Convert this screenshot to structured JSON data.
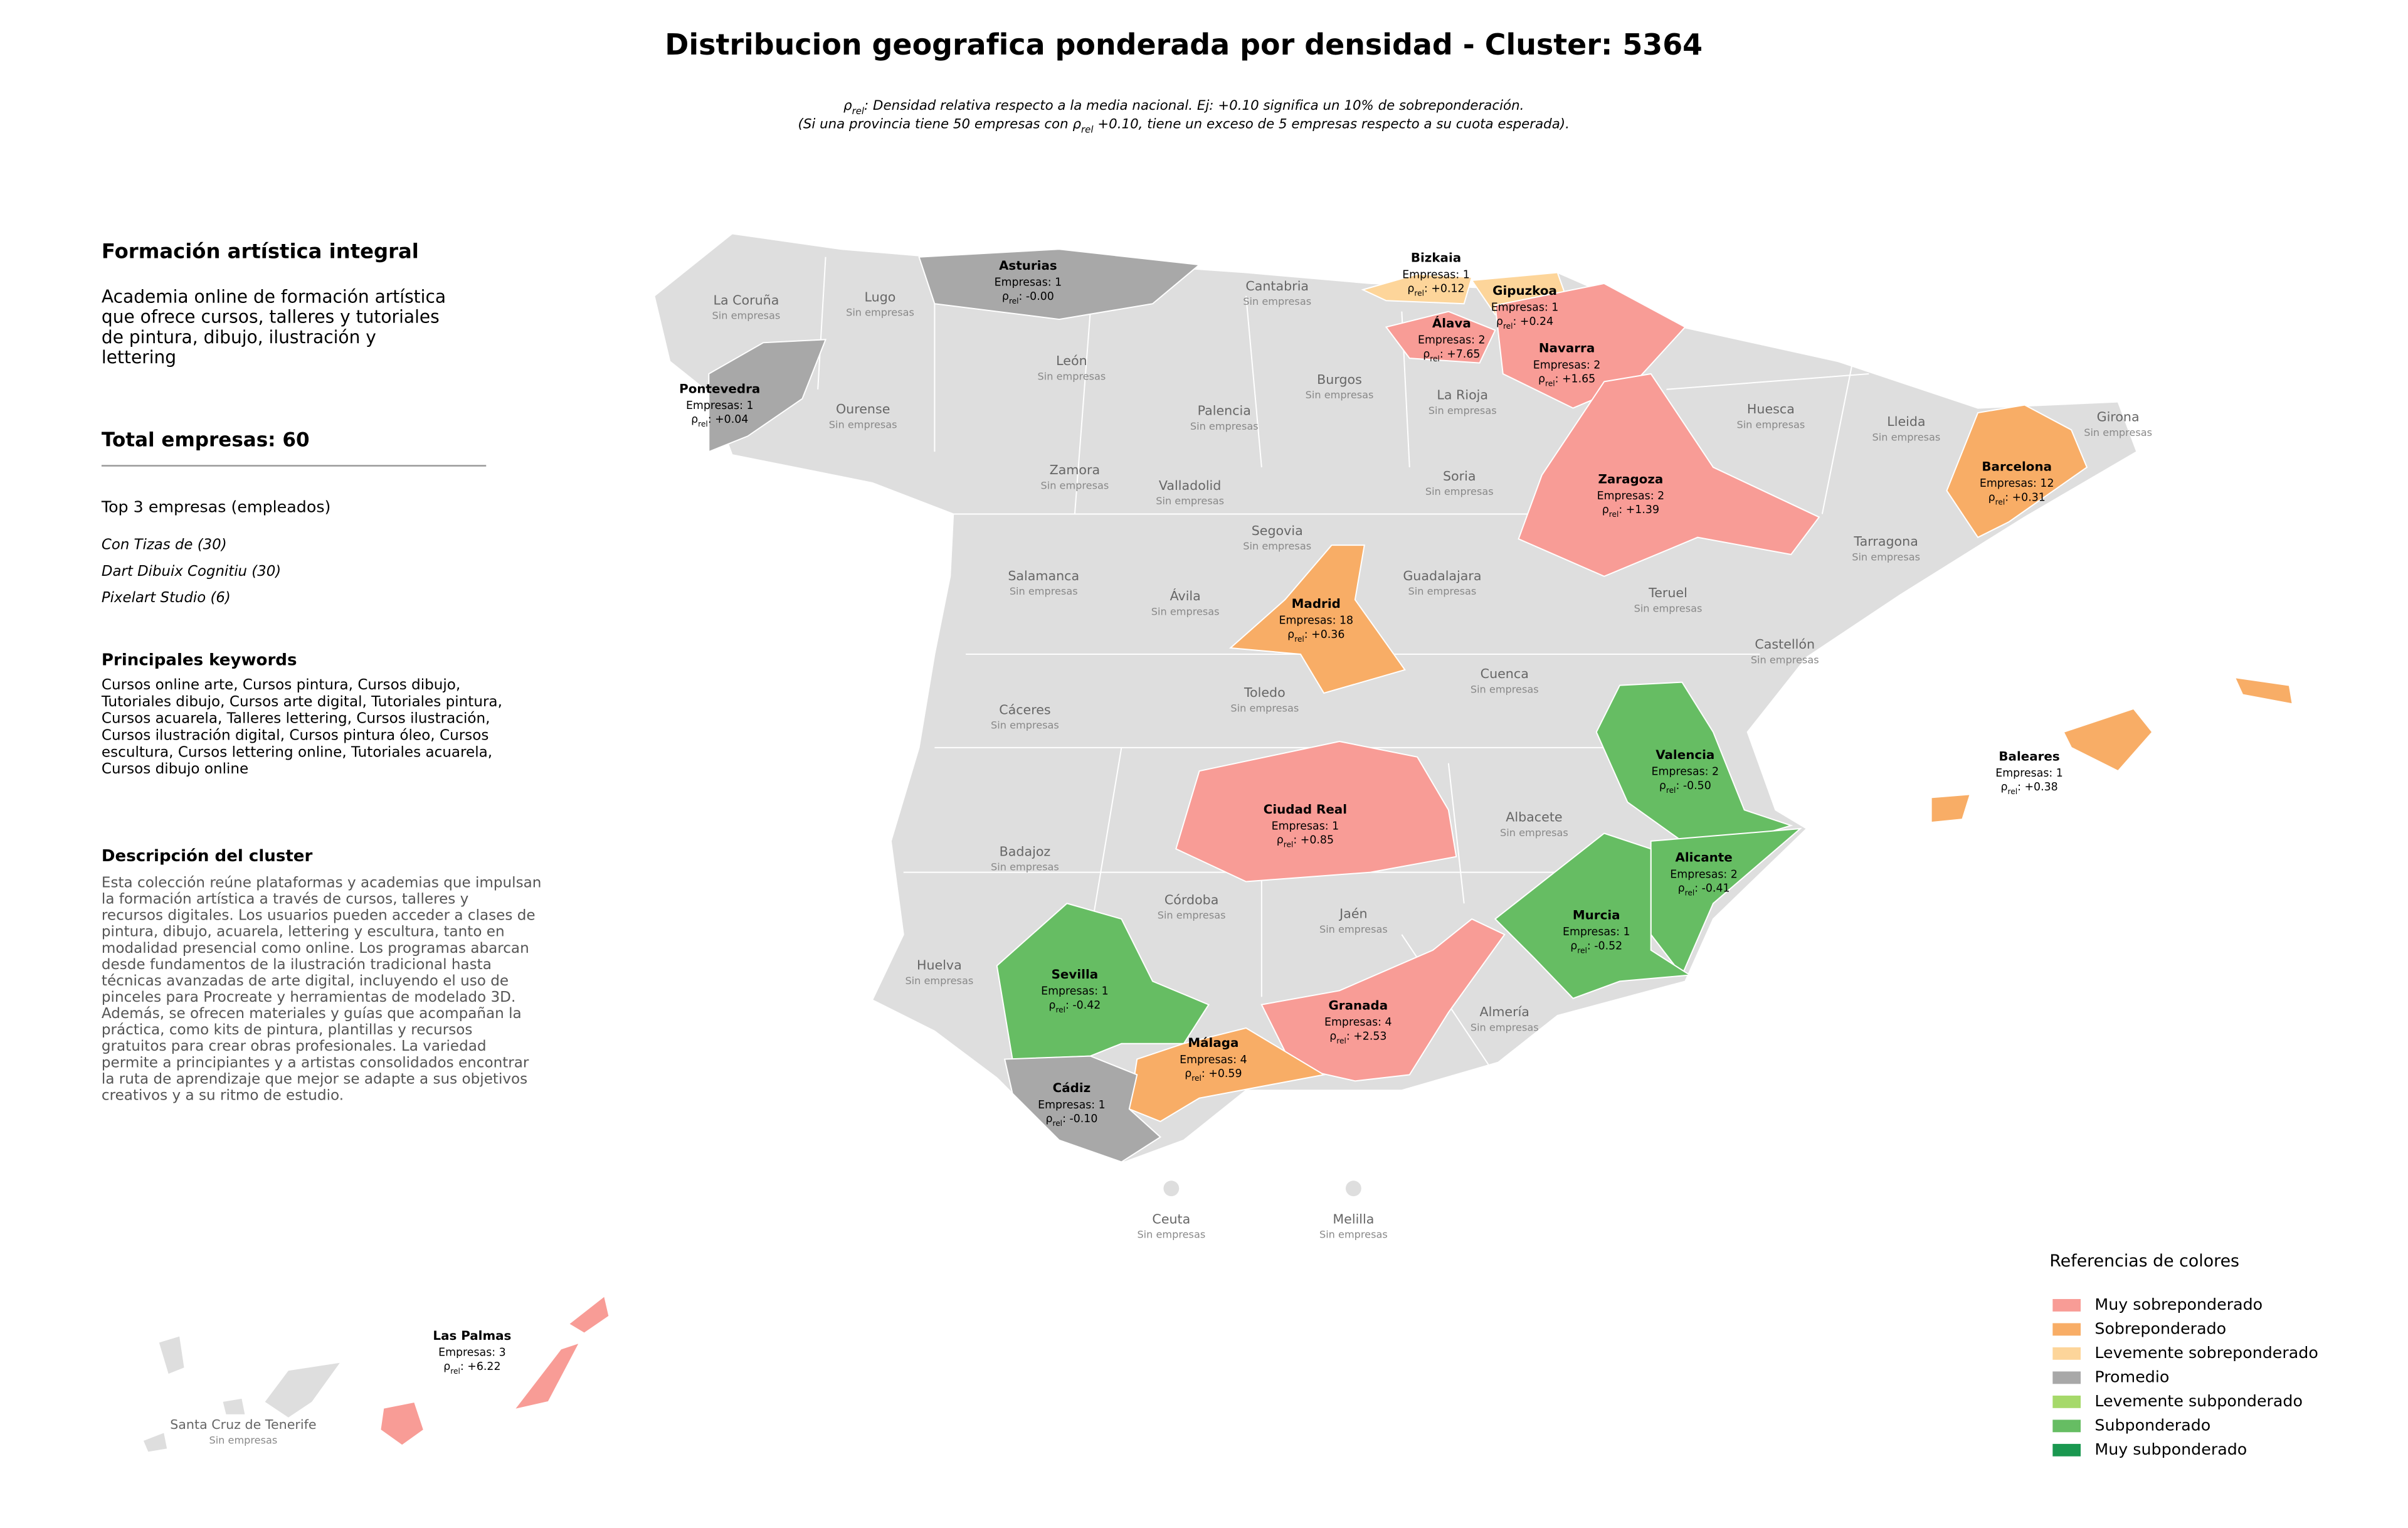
{
  "title": "Distribucion geografica ponderada por densidad - Cluster: 5364",
  "subtitle": [
    [
      "ρ",
      {
        "sub": "rel"
      },
      ": Densidad relativa respecto a la media nacional. Ej: +0.10 significa un 10% de sobreponderación."
    ],
    [
      "(Si una provincia tiene 50 empresas con ",
      "ρ",
      {
        "sub": "rel"
      },
      " +0.10, tiene un exceso de 5 empresas respecto a su cuota esperada)."
    ]
  ],
  "panel": {
    "heading": "Formación artística integral",
    "description": [
      "Academia online de formación artística",
      "que ofrece cursos, talleres y tutoriales",
      "de pintura, dibujo, ilustración y",
      "lettering"
    ],
    "total": "Total empresas: 60",
    "top_heading": "Top 3 empresas (empleados)",
    "top_companies": [
      "Con Tizas de (30)",
      "Dart Dibuix Cognitiu (30)",
      "Pixelart Studio (6)"
    ],
    "keywords_heading": "Principales keywords",
    "keywords": [
      "Cursos online arte, Cursos pintura, Cursos dibujo,",
      "Tutoriales dibujo, Cursos arte digital, Tutoriales pintura,",
      "Cursos acuarela, Talleres lettering, Cursos ilustración,",
      "Cursos ilustración digital, Cursos pintura óleo, Cursos",
      "escultura, Cursos lettering online, Tutoriales acuarela,",
      "Cursos dibujo online"
    ],
    "cluster_heading": "Descripción del cluster",
    "cluster_description": [
      "Esta colección reúne plataformas y academias que impulsan",
      "la formación artística a través de cursos, talleres y",
      "recursos digitales. Los usuarios pueden acceder a clases de",
      "pintura, dibujo, acuarela, lettering y escultura, tanto en",
      "modalidad presencial como online. Los programas abarcan",
      "desde fundamentos de la ilustración tradicional hasta",
      "técnicas avanzadas de arte digital, incluyendo el uso de",
      "pinceles para Procreate y herramientas de modelado 3D.",
      "Además, se ofrecen materiales y guías que acompañan la",
      "práctica, como kits de pintura, plantillas y recursos",
      "gratuitos para crear obras profesionales. La variedad",
      "permite a principiantes y a artistas consolidados encontrar",
      "la ruta de aprendizaje que mejor se adapte a sus objetivos",
      "creativos y a su ritmo de estudio."
    ]
  },
  "map": {
    "provinces": [
      {
        "name": "Asturias",
        "category": "Promedio",
        "companies": "Empresas: 1",
        "density": [
          "ρ",
          {
            "sub": "rel"
          },
          ": -0.00"
        ]
      },
      {
        "name": "Bizkaia",
        "category": "Levemente sobreponderado",
        "companies": "Empresas: 1",
        "density": [
          "ρ",
          {
            "sub": "rel"
          },
          ": +0.12"
        ]
      },
      {
        "name": "Gipuzkoa",
        "category": "Levemente sobreponderado",
        "companies": "Empresas: 1",
        "density": [
          "ρ",
          {
            "sub": "rel"
          },
          ": +0.24"
        ]
      },
      {
        "name": "Álava",
        "category": "Muy sobreponderado",
        "companies": "Empresas: 2",
        "density": [
          "ρ",
          {
            "sub": "rel"
          },
          ": +7.65"
        ]
      },
      {
        "name": "Navarra",
        "category": "Muy sobreponderado",
        "companies": "Empresas: 2",
        "density": [
          "ρ",
          {
            "sub": "rel"
          },
          ": +1.65"
        ]
      },
      {
        "name": "Pontevedra",
        "category": "Promedio",
        "companies": "Empresas: 1",
        "density": [
          "ρ",
          {
            "sub": "rel"
          },
          ": +0.04"
        ]
      },
      {
        "name": "Barcelona",
        "category": "Sobreponderado",
        "companies": "Empresas: 12",
        "density": [
          "ρ",
          {
            "sub": "rel"
          },
          ": +0.31"
        ]
      },
      {
        "name": "Zaragoza",
        "category": "Muy sobreponderado",
        "companies": "Empresas: 2",
        "density": [
          "ρ",
          {
            "sub": "rel"
          },
          ": +1.39"
        ]
      },
      {
        "name": "Madrid",
        "category": "Sobreponderado",
        "companies": "Empresas: 18",
        "density": [
          "ρ",
          {
            "sub": "rel"
          },
          ": +0.36"
        ]
      },
      {
        "name": "Ciudad Real",
        "category": "Muy sobreponderado",
        "companies": "Empresas: 1",
        "density": [
          "ρ",
          {
            "sub": "rel"
          },
          ": +0.85"
        ]
      },
      {
        "name": "Valencia",
        "category": "Subponderado",
        "companies": "Empresas: 2",
        "density": [
          "ρ",
          {
            "sub": "rel"
          },
          ": -0.50"
        ]
      },
      {
        "name": "Alicante",
        "category": "Subponderado",
        "companies": "Empresas: 2",
        "density": [
          "ρ",
          {
            "sub": "rel"
          },
          ": -0.41"
        ]
      },
      {
        "name": "Murcia",
        "category": "Subponderado",
        "companies": "Empresas: 1",
        "density": [
          "ρ",
          {
            "sub": "rel"
          },
          ": -0.52"
        ]
      },
      {
        "name": "Sevilla",
        "category": "Subponderado",
        "companies": "Empresas: 1",
        "density": [
          "ρ",
          {
            "sub": "rel"
          },
          ": -0.42"
        ]
      },
      {
        "name": "Granada",
        "category": "Muy sobreponderado",
        "companies": "Empresas: 4",
        "density": [
          "ρ",
          {
            "sub": "rel"
          },
          ": +2.53"
        ]
      },
      {
        "name": "Málaga",
        "category": "Sobreponderado",
        "companies": "Empresas: 4",
        "density": [
          "ρ",
          {
            "sub": "rel"
          },
          ": +0.59"
        ]
      },
      {
        "name": "Cádiz",
        "category": "Promedio",
        "companies": "Empresas: 1",
        "density": [
          "ρ",
          {
            "sub": "rel"
          },
          ": -0.10"
        ]
      },
      {
        "name": "Baleares",
        "category": "Sobreponderado",
        "companies": "Empresas: 1",
        "density": [
          "ρ",
          {
            "sub": "rel"
          },
          ": +0.38"
        ]
      },
      {
        "name": "Las Palmas",
        "category": "Muy sobreponderado",
        "companies": "Empresas: 3",
        "density": [
          "ρ",
          {
            "sub": "rel"
          },
          ": +6.22"
        ]
      }
    ],
    "empty_provinces": [
      "La Coruña",
      "Lugo",
      "Cantabria",
      "León",
      "Ourense",
      "Palencia",
      "Burgos",
      "La Rioja",
      "Huesca",
      "Lleida",
      "Girona",
      "Zamora",
      "Valladolid",
      "Soria",
      "Segovia",
      "Tarragona",
      "Salamanca",
      "Guadalajara",
      "Ávila",
      "Teruel",
      "Castellón",
      "Cuenca",
      "Toledo",
      "Cáceres",
      "Albacete",
      "Badajoz",
      "Córdoba",
      "Jaén",
      "Huelva",
      "Almería",
      "Ceuta",
      "Melilla",
      "Santa Cruz de Tenerife"
    ],
    "empty_label": "Sin empresas"
  },
  "legend": {
    "title": "Referencias de colores",
    "items": [
      {
        "label": "Muy sobreponderado",
        "color": "#f89c96"
      },
      {
        "label": "Sobreponderado",
        "color": "#f8ad66"
      },
      {
        "label": "Levemente sobreponderado",
        "color": "#fdd59a"
      },
      {
        "label": "Promedio",
        "color": "#a8a8a8"
      },
      {
        "label": "Levemente subponderado",
        "color": "#a6d96a"
      },
      {
        "label": "Subponderado",
        "color": "#66bd63"
      },
      {
        "label": "Muy subponderado",
        "color": "#1a9850"
      }
    ]
  }
}
